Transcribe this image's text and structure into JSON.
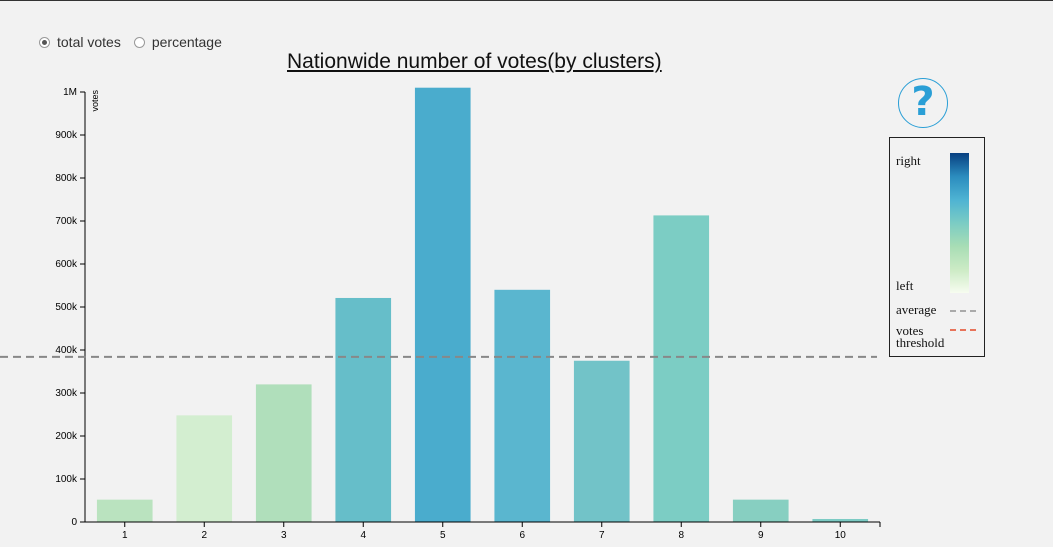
{
  "controls": {
    "options": [
      {
        "label": "total votes",
        "checked": true
      },
      {
        "label": "percentage",
        "checked": false
      }
    ]
  },
  "legend": {
    "right_label": "right",
    "left_label": "left",
    "average_label": "average",
    "threshold_label_line1": "votes",
    "threshold_label_line2": "threshold",
    "average_color": "#aaaaaa",
    "threshold_color": "#e8735a"
  },
  "chart_data": {
    "type": "bar",
    "title": "Nationwide number of votes(by clusters)",
    "ylabel": "votes",
    "xlabel": "",
    "categories": [
      "1",
      "2",
      "3",
      "4",
      "5",
      "6",
      "7",
      "8",
      "9",
      "10"
    ],
    "values": [
      52000,
      248000,
      320000,
      521000,
      1010000,
      540000,
      375000,
      713000,
      52000,
      7000
    ],
    "colors": [
      "#bae3bf",
      "#d3eed0",
      "#b0dfbb",
      "#66bec9",
      "#4aaccd",
      "#5ab6cf",
      "#72c3c8",
      "#7ccdc4",
      "#87cfc1",
      "#7ccbc4"
    ],
    "ylim": [
      0,
      1000000
    ],
    "yticks": [
      0,
      100000,
      200000,
      300000,
      400000,
      500000,
      600000,
      700000,
      800000,
      900000,
      1000000
    ],
    "ytick_labels": [
      "0",
      "100k",
      "200k",
      "300k",
      "400k",
      "500k",
      "600k",
      "700k",
      "800k",
      "900k",
      "1M"
    ],
    "average": 384000,
    "average_color": "#888888",
    "grid": false
  }
}
